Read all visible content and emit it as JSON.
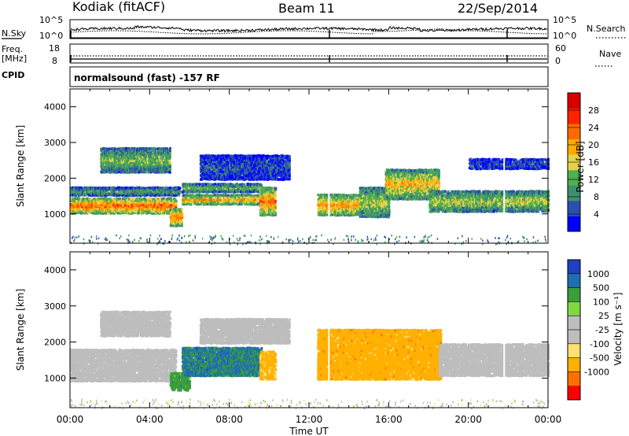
{
  "header": {
    "station": "Kodiak (fitACF)",
    "beam": "Beam 11",
    "date": "22/Sep/2014"
  },
  "aux_panels": {
    "nsky_label": "N.Sky",
    "nsky_top": "10^5",
    "nsky_bottom": "10^0",
    "nsearch_label": "N.Search",
    "nsearch_top": "10^5",
    "nsearch_bottom": "10^0",
    "freq_label_1": "Freq.",
    "freq_label_2": "[MHz]",
    "freq_top": "18",
    "freq_bottom": "8",
    "nave_label": "Nave",
    "nave_top": "60",
    "nave_bottom": "0",
    "cpid_label": "CPID",
    "cpid_text": "normalsound (fast) -157 RF"
  },
  "colors": {
    "power_scale": [
      "#0000ff",
      "#2b4fae",
      "#3f8f6f",
      "#4fb050",
      "#e3d34a",
      "#ffab00",
      "#ff6a00",
      "#ff2200",
      "#d80000"
    ],
    "velocity_scale": [
      "#ff0000",
      "#ff7000",
      "#ffb000",
      "#ffe070",
      "#bdbdbd",
      "#bdbdbd",
      "#7fd840",
      "#3a9e3a",
      "#1f6fb0",
      "#2040c0"
    ],
    "ground_scatter": "#bdbdbd"
  },
  "chart_data": [
    {
      "type": "heatmap",
      "title": "Power",
      "ylabel": "Slant Range [km]",
      "xlabel": "Time UT",
      "x_ticks": [
        "00:00",
        "04:00",
        "08:00",
        "12:00",
        "16:00",
        "20:00",
        "00:00"
      ],
      "xlim": [
        0,
        24
      ],
      "ylim": [
        180,
        4500
      ],
      "y_ticks": [
        1000,
        2000,
        3000,
        4000
      ],
      "colorbar": {
        "label": "Power [dB]",
        "ticks": [
          4,
          8,
          12,
          16,
          20,
          24,
          28
        ],
        "range": [
          0,
          32
        ]
      },
      "regions": [
        {
          "t0": 0.0,
          "t1": 5.3,
          "r0": 1050,
          "r1": 1500,
          "value": 26
        },
        {
          "t0": 0.0,
          "t1": 5.5,
          "r0": 1550,
          "r1": 1800,
          "value": 12
        },
        {
          "t0": 5.0,
          "t1": 5.6,
          "r0": 700,
          "r1": 1200,
          "value": 24
        },
        {
          "t0": 5.6,
          "t1": 9.6,
          "r0": 1300,
          "r1": 1600,
          "value": 22
        },
        {
          "t0": 5.6,
          "t1": 9.6,
          "r0": 1650,
          "r1": 1900,
          "value": 14
        },
        {
          "t0": 9.5,
          "t1": 10.3,
          "r0": 1000,
          "r1": 1800,
          "value": 24
        },
        {
          "t0": 1.5,
          "t1": 5.0,
          "r0": 2200,
          "r1": 2900,
          "value": 14
        },
        {
          "t0": 6.5,
          "t1": 11.0,
          "r0": 2000,
          "r1": 2700,
          "value": 6
        },
        {
          "t0": 12.4,
          "t1": 14.6,
          "r0": 1000,
          "r1": 1600,
          "value": 22
        },
        {
          "t0": 14.5,
          "t1": 16.0,
          "r0": 950,
          "r1": 1800,
          "value": 16
        },
        {
          "t0": 15.8,
          "t1": 18.5,
          "r0": 1450,
          "r1": 2300,
          "value": 20
        },
        {
          "t0": 18.0,
          "t1": 24.0,
          "r0": 1100,
          "r1": 1700,
          "value": 16
        },
        {
          "t0": 20.0,
          "t1": 24.0,
          "r0": 2300,
          "r1": 2600,
          "value": 6
        }
      ]
    },
    {
      "type": "heatmap",
      "title": "Velocity",
      "ylabel": "Slant Range [km]",
      "xlabel": "Time UT",
      "x_ticks": [
        "00:00",
        "04:00",
        "08:00",
        "12:00",
        "16:00",
        "20:00",
        "00:00"
      ],
      "xlim": [
        0,
        24
      ],
      "ylim": [
        180,
        4500
      ],
      "y_ticks": [
        1000,
        2000,
        3000,
        4000
      ],
      "colorbar": {
        "label": "Velocity [m s⁻¹]",
        "ticks": [
          1000,
          500,
          100,
          25,
          -25,
          -100,
          -500,
          -1000
        ]
      },
      "regions": [
        {
          "t0": 0.0,
          "t1": 5.3,
          "r0": 950,
          "r1": 1850,
          "value": 0,
          "ground": true
        },
        {
          "t0": 5.0,
          "t1": 6.0,
          "r0": 700,
          "r1": 1200,
          "value": 300
        },
        {
          "t0": 5.6,
          "t1": 9.6,
          "r0": 1100,
          "r1": 1900,
          "value": 600
        },
        {
          "t0": 9.5,
          "t1": 10.3,
          "r0": 1000,
          "r1": 1800,
          "value": -200
        },
        {
          "t0": 1.5,
          "t1": 5.0,
          "r0": 2200,
          "r1": 2900,
          "value": 0,
          "ground": true
        },
        {
          "t0": 6.5,
          "t1": 11.0,
          "r0": 2000,
          "r1": 2700,
          "value": 0,
          "ground": true
        },
        {
          "t0": 12.4,
          "t1": 18.6,
          "r0": 1000,
          "r1": 2400,
          "value": -300
        },
        {
          "t0": 18.5,
          "t1": 24.0,
          "r0": 1100,
          "r1": 2000,
          "value": 0,
          "ground": true
        }
      ]
    }
  ]
}
